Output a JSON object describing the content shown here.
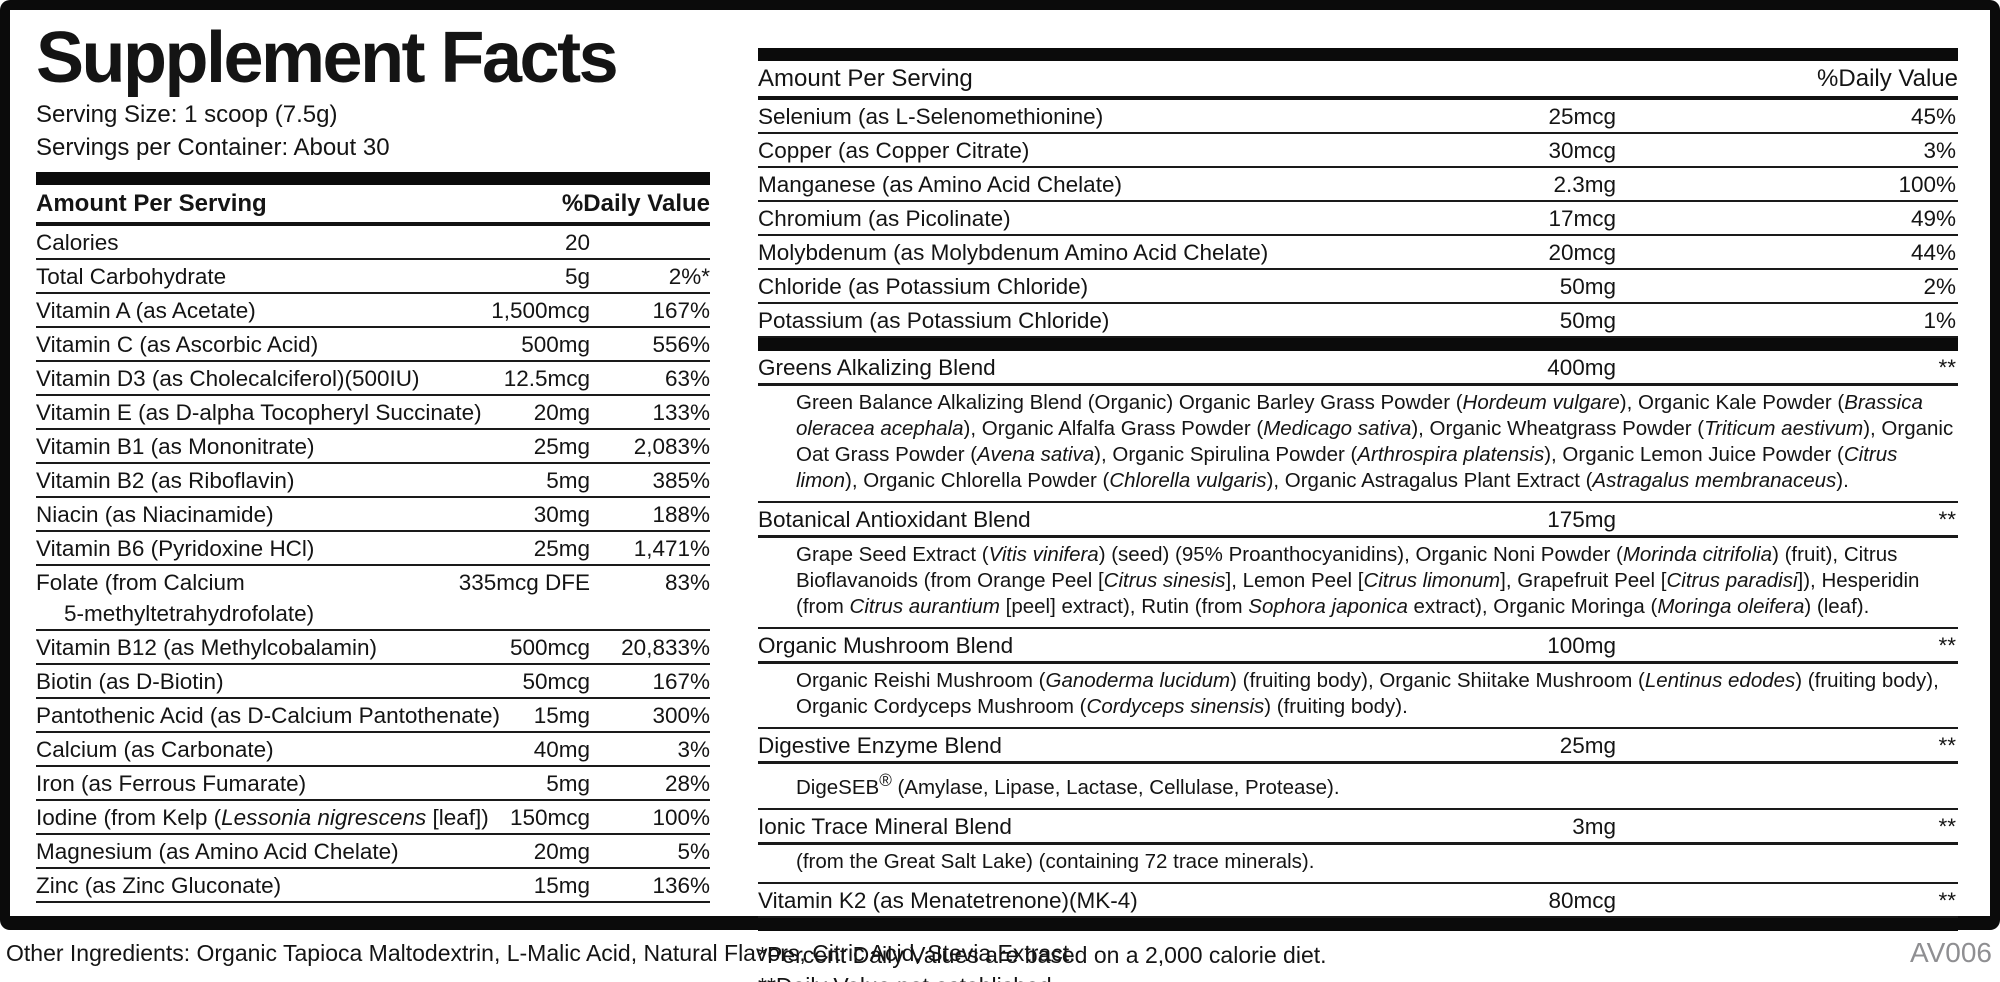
{
  "colors": {
    "border_black": "#0b0b0b",
    "text": "#141414",
    "code_gray": "#8f8f92"
  },
  "page": {
    "code": "AV006"
  },
  "label": {
    "title": "Supplement Facts",
    "serving_size": "Serving Size: 1 scoop (7.5g)",
    "servings_per_container": "Servings per Container: About 30",
    "columns": {
      "amount_header": "Amount Per Serving",
      "dv_header": "%Daily Value"
    },
    "left_table": {
      "rows": [
        {
          "name": "Calories",
          "amount": "20",
          "dv": ""
        },
        {
          "name": "Total Carbohydrate",
          "amount": "5g",
          "dv": "2%*"
        },
        {
          "name": "Vitamin A (as Acetate)",
          "amount": "1,500mcg",
          "dv": "167%"
        },
        {
          "name": "Vitamin C (as Ascorbic Acid)",
          "amount": "500mg",
          "dv": "556%"
        },
        {
          "name": "Vitamin D3 (as Cholecalciferol)(500IU)",
          "amount": "12.5mcg",
          "dv": "63%"
        },
        {
          "name": "Vitamin E (as D-alpha Tocopheryl Succinate)",
          "amount": "20mg",
          "dv": "133%"
        },
        {
          "name": "Vitamin B1 (as Mononitrate)",
          "amount": "25mg",
          "dv": "2,083%"
        },
        {
          "name": "Vitamin B2 (as Riboflavin)",
          "amount": "5mg",
          "dv": "385%"
        },
        {
          "name": "Niacin (as Niacinamide)",
          "amount": "30mg",
          "dv": "188%"
        },
        {
          "name": "Vitamin B6 (Pyridoxine HCl)",
          "amount": "25mg",
          "dv": "1,471%"
        },
        {
          "name": "Folate (from Calcium<br><span class=\"wrapind\">5-methyltetrahydrofolate)</span>",
          "amount": "335mcg DFE",
          "dv": "83%"
        },
        {
          "name": "Vitamin B12 (as Methylcobalamin)",
          "amount": "500mcg",
          "dv": "20,833%"
        },
        {
          "name": "Biotin (as D-Biotin)",
          "amount": "50mcg",
          "dv": "167%"
        },
        {
          "name": "Pantothenic Acid (as D-Calcium Pantothenate)",
          "amount": "15mg",
          "dv": "300%"
        },
        {
          "name": "Calcium (as Carbonate)",
          "amount": "40mg",
          "dv": "3%"
        },
        {
          "name": "Iron (as Ferrous Fumarate)",
          "amount": "5mg",
          "dv": "28%"
        },
        {
          "name": "Iodine (from Kelp (<i>Lessonia nigrescens</i> [leaf])",
          "amount": "150mcg",
          "dv": "100%"
        },
        {
          "name": "Magnesium (as Amino Acid Chelate)",
          "amount": "20mg",
          "dv": "5%"
        },
        {
          "name": "Zinc (as Zinc Gluconate)",
          "amount": "15mg",
          "dv": "136%"
        }
      ]
    },
    "right_table": {
      "minerals": [
        {
          "name": "Selenium (as L-Selenomethionine)",
          "amount": "25mcg",
          "dv": "45%"
        },
        {
          "name": "Copper (as Copper Citrate)",
          "amount": "30mcg",
          "dv": "3%"
        },
        {
          "name": "Manganese (as Amino Acid Chelate)",
          "amount": "2.3mg",
          "dv": "100%"
        },
        {
          "name": "Chromium (as Picolinate)",
          "amount": "17mcg",
          "dv": "49%"
        },
        {
          "name": "Molybdenum (as Molybdenum Amino Acid Chelate)",
          "amount": "20mcg",
          "dv": "44%"
        },
        {
          "name": "Chloride (as Potassium Chloride)",
          "amount": "50mg",
          "dv": "2%"
        },
        {
          "name": "Potassium (as Potassium Chloride)",
          "amount": "50mg",
          "dv": "1%"
        }
      ],
      "blends": [
        {
          "name": "Greens Alkalizing Blend",
          "amount": "400mg",
          "dv": "**",
          "desc": "Green Balance Alkalizing Blend (Organic) Organic Barley Grass Powder (<i>Hordeum vulgare</i>), Organic Kale Powder (<i>Brassica oleracea acephala</i>), Organic Alfalfa Grass Powder (<i>Medicago sativa</i>), Organic Wheatgrass Powder (<i>Triticum aestivum</i>), Organic Oat Grass Powder (<i>Avena sativa</i>), Organic Spirulina Powder (<i>Arthrospira platensis</i>), Organic Lemon Juice Powder (<i>Citrus limon</i>), Organic Chlorella Powder (<i>Chlorella vulgaris</i>), Organic Astragalus Plant Extract (<i>Astragalus membranaceus</i>)."
        },
        {
          "name": "Botanical Antioxidant Blend",
          "amount": "175mg",
          "dv": "**",
          "desc": "Grape Seed Extract (<i>Vitis vinifera</i>) (seed) (95% Proanthocyanidins), Organic Noni Powder (<i>Morinda citrifolia</i>) (fruit), Citrus Bioflavanoids (from Orange Peel [<i>Citrus sinesis</i>], Lemon Peel [<i>Citrus limonum</i>], Grapefruit Peel [<i>Citrus paradisi</i>]), Hesperidin (from <i>Citrus aurantium</i> [peel] extract), Rutin (from <i>Sophora japonica</i> extract), Organic Moringa (<i>Moringa oleifera</i>) (leaf)."
        },
        {
          "name": "Organic Mushroom Blend",
          "amount": "100mg",
          "dv": "**",
          "desc": "Organic Reishi Mushroom (<i>Ganoderma lucidum</i>) (fruiting body), Organic Shiitake Mushroom (<i>Lentinus edodes</i>) (fruiting body), Organic Cordyceps Mushroom (<i>Cordyceps sinensis</i>) (fruiting body)."
        },
        {
          "name": "Digestive Enzyme Blend",
          "amount": "25mg",
          "dv": "**",
          "desc": "DigeSEB<sup>®</sup> (Amylase, Lipase, Lactase, Cellulase, Protease)."
        },
        {
          "name": "Ionic Trace Mineral Blend",
          "amount": "3mg",
          "dv": "**",
          "desc": "(from the Great Salt Lake) (containing 72 trace minerals)."
        },
        {
          "name": "Vitamin K2 (as Menatetrenone)(MK-4)",
          "amount": "80mcg",
          "dv": "**"
        }
      ]
    },
    "footnotes": [
      "*Percent Daily Values are based on a 2,000 calorie diet.",
      "**Daily Value not established."
    ],
    "other_ingredients": "Other Ingredients: Organic Tapioca Maltodextrin, L-Malic Acid, Natural Flavors, Citric Acid, Stevia Extract."
  }
}
